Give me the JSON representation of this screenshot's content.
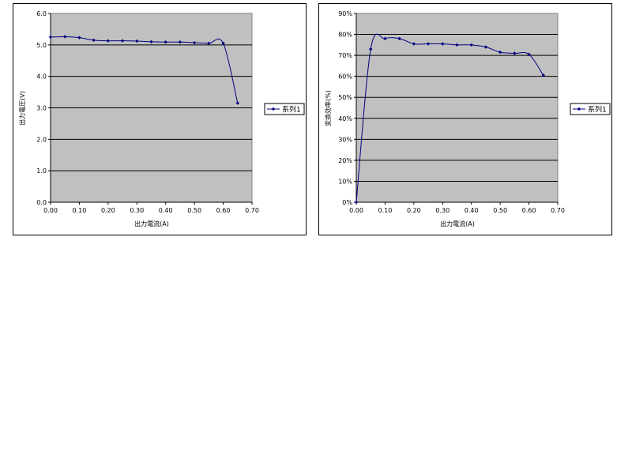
{
  "chart_data": [
    {
      "type": "line",
      "title": "",
      "xlabel": "出力電流(A)",
      "ylabel": "出力電圧(V)",
      "xlim": [
        0,
        0.7
      ],
      "ylim": [
        0,
        6
      ],
      "xticks": [
        "0.00",
        "0.10",
        "0.20",
        "0.30",
        "0.40",
        "0.50",
        "0.60",
        "0.70"
      ],
      "yticks": [
        "0.0",
        "1.0",
        "2.0",
        "3.0",
        "4.0",
        "5.0",
        "6.0"
      ],
      "grid": "horizontal",
      "legend_position": "right",
      "plot_bg": "#c0c0c0",
      "line_color": "#000080",
      "series": [
        {
          "name": "系列1",
          "x": [
            0.0,
            0.05,
            0.1,
            0.15,
            0.2,
            0.25,
            0.3,
            0.35,
            0.4,
            0.45,
            0.5,
            0.55,
            0.6,
            0.65
          ],
          "y": [
            5.25,
            5.26,
            5.23,
            5.15,
            5.13,
            5.13,
            5.12,
            5.1,
            5.09,
            5.09,
            5.07,
            5.05,
            5.05,
            3.15
          ]
        }
      ]
    },
    {
      "type": "line",
      "title": "",
      "xlabel": "出力電流(A)",
      "ylabel": "変換効率(%)",
      "xlim": [
        0,
        0.7
      ],
      "ylim": [
        0,
        90
      ],
      "xticks": [
        "0.00",
        "0.10",
        "0.20",
        "0.30",
        "0.40",
        "0.50",
        "0.60",
        "0.70"
      ],
      "yticks": [
        "0%",
        "10%",
        "20%",
        "30%",
        "40%",
        "50%",
        "60%",
        "70%",
        "80%",
        "90%"
      ],
      "grid": "horizontal",
      "legend_position": "right",
      "plot_bg": "#c0c0c0",
      "line_color": "#000080",
      "series": [
        {
          "name": "系列1",
          "x": [
            0.0,
            0.05,
            0.1,
            0.15,
            0.2,
            0.25,
            0.3,
            0.35,
            0.4,
            0.45,
            0.5,
            0.55,
            0.6,
            0.65
          ],
          "y": [
            0,
            73,
            78,
            78,
            75.5,
            75.5,
            75.5,
            75,
            75,
            74,
            71.5,
            71,
            70.5,
            60.5
          ]
        }
      ]
    }
  ]
}
